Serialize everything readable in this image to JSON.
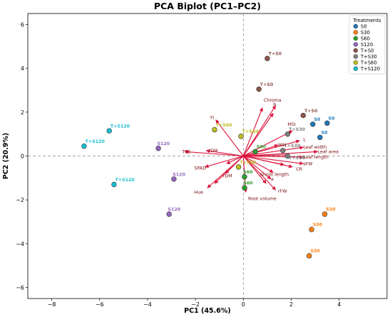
{
  "chart_data": {
    "type": "scatter",
    "title": "PCA Biplot (PC1–PC2)",
    "xlabel": "PC1 (45.6%)",
    "ylabel": "PC2 (20.9%)",
    "xlim": [
      -9,
      6
    ],
    "ylim": [
      -6.5,
      6.5
    ],
    "xticks": [
      -8,
      -6,
      -4,
      -2,
      0,
      2,
      4
    ],
    "yticks": [
      -6,
      -4,
      -2,
      0,
      2,
      4,
      6
    ],
    "reference_lines": {
      "x": 0,
      "y": 0,
      "style": "dashed"
    },
    "grid": false,
    "legend": {
      "title": "Treatments",
      "position": "top-right",
      "entries": [
        "S0",
        "S30",
        "S60",
        "S120",
        "T+S0",
        "T+S30",
        "T+S60",
        "T+S120"
      ]
    },
    "colors": {
      "S0": "#1f77b4",
      "S30": "#ff7f0e",
      "S60": "#2ca02c",
      "S120": "#9467bd",
      "T+S0": "#8c564b",
      "T+S30": "#7f7f7f",
      "T+S60": "#bcbd22",
      "T+S120": "#17becf",
      "loading_arrow": "#dc143c",
      "loading_label": "#8b0000"
    },
    "series": [
      {
        "name": "S0",
        "points": [
          [
            2.9,
            1.45
          ],
          [
            3.5,
            1.5
          ],
          [
            3.2,
            0.85
          ]
        ]
      },
      {
        "name": "S30",
        "points": [
          [
            3.4,
            -2.65
          ],
          [
            2.85,
            -3.35
          ],
          [
            2.75,
            -4.55
          ]
        ]
      },
      {
        "name": "S60",
        "points": [
          [
            0.5,
            0.2
          ],
          [
            0.05,
            -0.95
          ],
          [
            0.05,
            -1.45
          ]
        ]
      },
      {
        "name": "S120",
        "points": [
          [
            -3.55,
            0.35
          ],
          [
            -2.9,
            -1.05
          ],
          [
            -3.1,
            -2.65
          ]
        ]
      },
      {
        "name": "T+S0",
        "points": [
          [
            1.0,
            4.45
          ],
          [
            0.65,
            3.05
          ],
          [
            2.5,
            1.85
          ]
        ]
      },
      {
        "name": "T+S30",
        "points": [
          [
            1.85,
            1.0
          ],
          [
            1.65,
            0.25
          ],
          [
            1.85,
            0.0
          ]
        ]
      },
      {
        "name": "T+S60",
        "points": [
          [
            -1.2,
            1.2
          ],
          [
            -0.1,
            0.9
          ],
          [
            -0.2,
            -0.5
          ]
        ]
      },
      {
        "name": "T+S120",
        "points": [
          [
            -5.6,
            1.15
          ],
          [
            -6.65,
            0.45
          ],
          [
            -5.4,
            -1.3
          ]
        ]
      }
    ],
    "point_labels": [
      {
        "text": "S0",
        "series": "S0",
        "x": 2.95,
        "y": 1.6
      },
      {
        "text": "S0",
        "series": "S0",
        "x": 3.55,
        "y": 1.65
      },
      {
        "text": "S0",
        "series": "S0",
        "x": 3.25,
        "y": 1.0
      },
      {
        "text": "S30",
        "series": "S30",
        "x": 3.45,
        "y": -2.5
      },
      {
        "text": "S30",
        "series": "S30",
        "x": 2.9,
        "y": -3.2
      },
      {
        "text": "S30",
        "series": "S30",
        "x": 2.8,
        "y": -4.4
      },
      {
        "text": "S60",
        "series": "S60",
        "x": 0.55,
        "y": 0.35
      },
      {
        "text": "S60",
        "series": "S60",
        "x": 0.0,
        "y": -0.8
      },
      {
        "text": "S60",
        "series": "S60",
        "x": 0.0,
        "y": -1.3
      },
      {
        "text": "S120",
        "series": "S120",
        "x": -3.6,
        "y": 0.5
      },
      {
        "text": "S120",
        "series": "S120",
        "x": -2.95,
        "y": -0.9
      },
      {
        "text": "S120",
        "series": "S120",
        "x": -3.15,
        "y": -2.5
      },
      {
        "text": "T+S0",
        "series": "T+S0",
        "x": 1.05,
        "y": 4.6
      },
      {
        "text": "T+S0",
        "series": "T+S0",
        "x": 0.7,
        "y": 3.2
      },
      {
        "text": "T+S0",
        "series": "T+S0",
        "x": 2.55,
        "y": 2.0
      },
      {
        "text": "T+S30",
        "series": "T+S30",
        "x": 1.9,
        "y": 1.15
      },
      {
        "text": "T+S30",
        "series": "T+S30",
        "x": 1.7,
        "y": 0.4
      },
      {
        "text": "T+S30",
        "series": "T+S30",
        "x": 1.9,
        "y": -0.15
      },
      {
        "text": "T+S60",
        "series": "T+S60",
        "x": -1.15,
        "y": 1.35
      },
      {
        "text": "T+S60",
        "series": "T+S60",
        "x": -0.05,
        "y": 1.05
      },
      {
        "text": "T+S60",
        "series": "T+S60",
        "x": -0.15,
        "y": -0.35
      },
      {
        "text": "T+S120",
        "series": "T+S120",
        "x": -5.55,
        "y": 1.3
      },
      {
        "text": "T+S120",
        "series": "T+S120",
        "x": -6.6,
        "y": 0.6
      },
      {
        "text": "T+S120",
        "series": "T+S120",
        "x": -5.35,
        "y": -1.15
      }
    ],
    "loadings": [
      {
        "name": "Chroma",
        "x": 0.8,
        "y": 2.2,
        "lx": 0.85,
        "ly": 2.55
      },
      {
        "name": "b",
        "x": 1.25,
        "y": 1.95,
        "lx": 1.25,
        "ly": 2.35
      },
      {
        "name": "YI",
        "x": -1.15,
        "y": 1.65,
        "lx": -1.4,
        "ly": 1.75
      },
      {
        "name": "TSS",
        "x": -2.45,
        "y": 0.2,
        "lx": -2.55,
        "ly": 0.2
      },
      {
        "name": "rDM",
        "x": -1.55,
        "y": 0.25,
        "lx": -1.45,
        "ly": 0.25
      },
      {
        "name": "MSI",
        "x": 2.05,
        "y": 1.15,
        "lx": 1.85,
        "ly": 1.45
      },
      {
        "name": "L",
        "x": 2.35,
        "y": 0.7,
        "lx": 2.5,
        "ly": 0.75
      },
      {
        "name": "Leaf width",
        "x": 2.5,
        "y": 0.4,
        "lx": 2.5,
        "ly": 0.4
      },
      {
        "name": "Leaf area",
        "x": 3.1,
        "y": 0.2,
        "lx": 3.1,
        "ly": 0.2
      },
      {
        "name": "Leaf length",
        "x": 2.5,
        "y": -0.05,
        "lx": 2.5,
        "ly": -0.05
      },
      {
        "name": "sFW",
        "x": 2.5,
        "y": -0.35,
        "lx": 2.5,
        "ly": -0.35
      },
      {
        "name": "CR",
        "x": 2.05,
        "y": -0.5,
        "lx": 2.2,
        "ly": -0.6
      },
      {
        "name": "SPAD",
        "x": -1.6,
        "y": -0.5,
        "lx": -2.05,
        "ly": -0.55
      },
      {
        "name": "rDM",
        "x": -0.75,
        "y": -0.8,
        "lx": -0.85,
        "ly": -0.9
      },
      {
        "name": "Hue",
        "x": -1.5,
        "y": -1.45,
        "lx": -2.05,
        "ly": -1.65
      },
      {
        "name": "Shoot length",
        "x": 1.25,
        "y": -0.75,
        "lx": 0.7,
        "ly": -0.85
      },
      {
        "name": "a",
        "x": 1.15,
        "y": -1.05,
        "lx": 1.15,
        "ly": -1.05
      },
      {
        "name": "rFW",
        "x": 1.35,
        "y": -1.55,
        "lx": 1.45,
        "ly": -1.6
      },
      {
        "name": "Root volume",
        "x": 0.1,
        "y": -1.65,
        "lx": 0.2,
        "ly": -1.95
      },
      {
        "name": "MSI",
        "x": 1.45,
        "y": 0.5,
        "lx": 1.45,
        "ly": 0.5
      },
      {
        "name": "",
        "x": 1.35,
        "y": 2.3
      },
      {
        "name": "",
        "x": 1.9,
        "y": 0.05
      },
      {
        "name": "",
        "x": 1.7,
        "y": -0.4
      },
      {
        "name": "",
        "x": -1.2,
        "y": -1.25
      },
      {
        "name": "",
        "x": 0.95,
        "y": -1.25
      },
      {
        "name": "",
        "x": -0.7,
        "y": -0.35
      }
    ]
  }
}
